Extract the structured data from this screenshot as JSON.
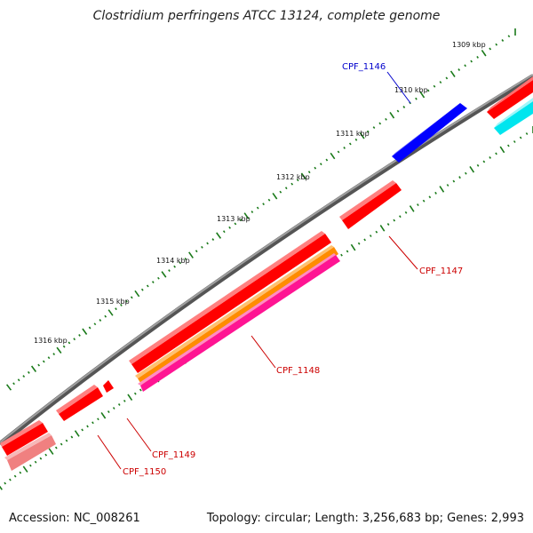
{
  "title": "Clostridium perfringens ATCC 13124, complete genome",
  "footer": {
    "accession": "Accession: NC_008261",
    "topology": "Topology: circular; Length: 3,256,683 bp; Genes: 2,993"
  },
  "scale_labels": [
    "1309 kbp",
    "1310 kbp",
    "1311 kbp",
    "1312 kbp",
    "1313 kbp",
    "1314 kbp",
    "1315 kbp",
    "1316 kbp"
  ],
  "genes": [
    {
      "id": "CPF_1146",
      "label": "CPF_1146",
      "color": "#0000cc"
    },
    {
      "id": "CPF_1147",
      "label": "CPF_1147",
      "color": "#cc0000"
    },
    {
      "id": "CPF_1148",
      "label": "CPF_1148",
      "color": "#cc0000"
    },
    {
      "id": "CPF_1149",
      "label": "CPF_1149",
      "color": "#cc0000"
    },
    {
      "id": "CPF_1150",
      "label": "CPF_1150",
      "color": "#cc0000"
    }
  ],
  "colors": {
    "backbone": "#8a8a8a",
    "cds": "#ff0000",
    "gene_blue": "#0000ff",
    "gene_cyan": "#00e5ee",
    "orange": "#ff8c00",
    "magenta": "#ff1493",
    "pink": "#f08080",
    "tick": "#1a7a1a"
  }
}
